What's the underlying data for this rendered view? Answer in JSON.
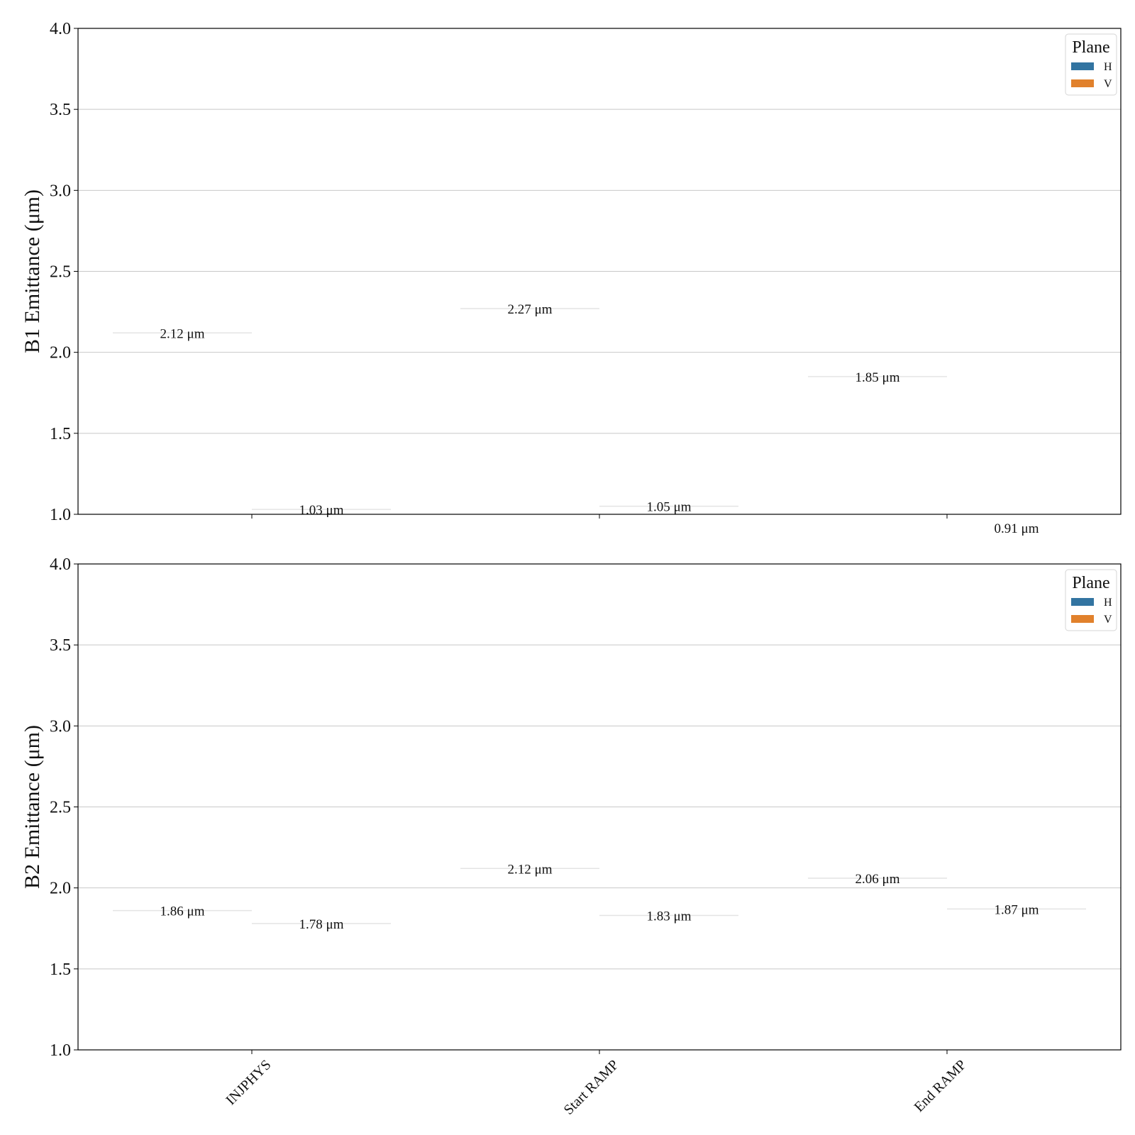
{
  "chart_data": [
    {
      "type": "bar",
      "ylabel": "B1 Emittance (μm)",
      "ylim": [
        1.0,
        4.0
      ],
      "yticks": [
        "1.0",
        "1.5",
        "2.0",
        "2.5",
        "3.0",
        "3.5",
        "4.0"
      ],
      "grid": "horizontal",
      "categories": [
        "INJPHYS",
        "Start RAMP",
        "End RAMP"
      ],
      "legend": {
        "title": "Plane",
        "placement": "top-right"
      },
      "series": [
        {
          "name": "H",
          "color": "#3274a1",
          "values": [
            2.12,
            2.27,
            1.85
          ],
          "labels": [
            "2.12 μm",
            "2.27 μm",
            "1.85 μm"
          ]
        },
        {
          "name": "V",
          "color": "#e1812c",
          "values": [
            1.03,
            1.05,
            0.91
          ],
          "labels": [
            "1.03 μm",
            "1.05 μm",
            "0.91 μm"
          ]
        }
      ]
    },
    {
      "type": "bar",
      "ylabel": "B2 Emittance (μm)",
      "ylim": [
        1.0,
        4.0
      ],
      "yticks": [
        "1.0",
        "1.5",
        "2.0",
        "2.5",
        "3.0",
        "3.5",
        "4.0"
      ],
      "grid": "horizontal",
      "categories": [
        "INJPHYS",
        "Start RAMP",
        "End RAMP"
      ],
      "legend": {
        "title": "Plane",
        "placement": "top-right"
      },
      "series": [
        {
          "name": "H",
          "color": "#3274a1",
          "values": [
            1.86,
            2.12,
            2.06
          ],
          "labels": [
            "1.86 μm",
            "2.12 μm",
            "2.06 μm"
          ]
        },
        {
          "name": "V",
          "color": "#e1812c",
          "values": [
            1.78,
            1.83,
            1.87
          ],
          "labels": [
            "1.78 μm",
            "1.83 μm",
            "1.87 μm"
          ]
        }
      ]
    }
  ]
}
